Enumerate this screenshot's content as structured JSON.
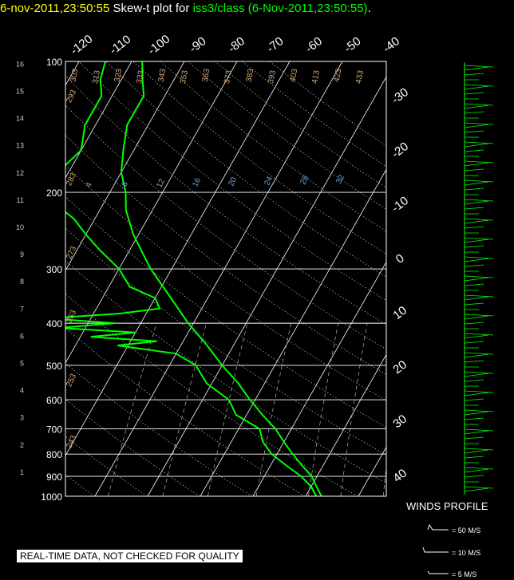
{
  "title": {
    "date": "6-nov-2011,23:50:55",
    "plain": "Skew-t plot for",
    "source": "iss3/class (6-Nov-2011,23:50:55)",
    "period": "."
  },
  "footer_text": "REAL-TIME DATA, NOT CHECKED FOR QUALITY",
  "winds": {
    "title": "WINDS PROFILE",
    "legend": [
      "= 50 M/S",
      "= 10 M/S",
      "= 5 M/S"
    ]
  },
  "colors": {
    "temperature": "#00ff00",
    "dewpoint": "#00ff00",
    "isobars": "#ffffff",
    "grid": "#ffffff",
    "title_date": "#ffff00"
  },
  "chart_data": {
    "type": "line",
    "pressure_ticks": [
      "100",
      "200",
      "300",
      "400",
      "500",
      "600",
      "700",
      "800",
      "900",
      "1000"
    ],
    "pressure_values": [
      100,
      200,
      300,
      400,
      500,
      600,
      700,
      800,
      900,
      1000
    ],
    "height_ticks": [
      "1",
      "2",
      "3",
      "4",
      "5",
      "6",
      "7",
      "8",
      "9",
      "10",
      "11",
      "12",
      "13",
      "14",
      "15",
      "16"
    ],
    "temperature_ticks": [
      "-120",
      "-110",
      "-100",
      "-90",
      "-80",
      "-70",
      "-60",
      "-50",
      "-40",
      "-30",
      "-20",
      "-10",
      "0",
      "10",
      "20",
      "30",
      "40"
    ],
    "temperature_values": [
      -120,
      -110,
      -100,
      -90,
      -80,
      -70,
      -60,
      -50,
      -40,
      -30,
      -20,
      -10,
      0,
      10,
      20,
      30,
      40
    ],
    "dry_adiabat_labels": [
      "303",
      "313",
      "323",
      "333",
      "343",
      "353",
      "363",
      "373",
      "383",
      "393",
      "403",
      "413",
      "423",
      "433"
    ],
    "mixing_ratio_labels": [
      "4",
      "8",
      "12",
      "16",
      "20",
      "24",
      "28",
      "32"
    ],
    "theta_labels_left": [
      "293",
      "283",
      "273",
      "263",
      "253",
      "243"
    ],
    "series": [
      {
        "name": "temperature",
        "points": [
          [
            1000,
            13
          ],
          [
            950,
            11
          ],
          [
            900,
            9
          ],
          [
            850,
            6
          ],
          [
            800,
            3
          ],
          [
            750,
            0
          ],
          [
            700,
            -3
          ],
          [
            650,
            -7
          ],
          [
            600,
            -11
          ],
          [
            550,
            -15
          ],
          [
            500,
            -20
          ],
          [
            450,
            -25
          ],
          [
            400,
            -31
          ],
          [
            350,
            -37
          ],
          [
            300,
            -44
          ],
          [
            250,
            -51
          ],
          [
            220,
            -55
          ],
          [
            200,
            -57
          ],
          [
            180,
            -60
          ],
          [
            160,
            -62
          ],
          [
            140,
            -64
          ],
          [
            120,
            -64
          ],
          [
            110,
            -66
          ],
          [
            100,
            -68
          ]
        ]
      },
      {
        "name": "dewpoint",
        "points": [
          [
            1000,
            12
          ],
          [
            950,
            10
          ],
          [
            900,
            7
          ],
          [
            850,
            3
          ],
          [
            800,
            -1
          ],
          [
            750,
            -4
          ],
          [
            700,
            -6
          ],
          [
            650,
            -12
          ],
          [
            600,
            -15
          ],
          [
            550,
            -21
          ],
          [
            500,
            -25
          ],
          [
            470,
            -30
          ],
          [
            450,
            -42
          ],
          [
            440,
            -35
          ],
          [
            430,
            -48
          ],
          [
            420,
            -40
          ],
          [
            410,
            -55
          ],
          [
            400,
            -45
          ],
          [
            390,
            -58
          ],
          [
            380,
            -45
          ],
          [
            370,
            -38
          ],
          [
            350,
            -40
          ],
          [
            330,
            -46
          ],
          [
            300,
            -50
          ],
          [
            270,
            -56
          ],
          [
            250,
            -60
          ],
          [
            230,
            -64
          ],
          [
            210,
            -70
          ],
          [
            200,
            -72
          ],
          [
            180,
            -72
          ],
          [
            160,
            -70
          ],
          [
            140,
            -72
          ],
          [
            120,
            -72
          ],
          [
            110,
            -74
          ],
          [
            100,
            -75
          ]
        ]
      }
    ],
    "grid": true
  }
}
